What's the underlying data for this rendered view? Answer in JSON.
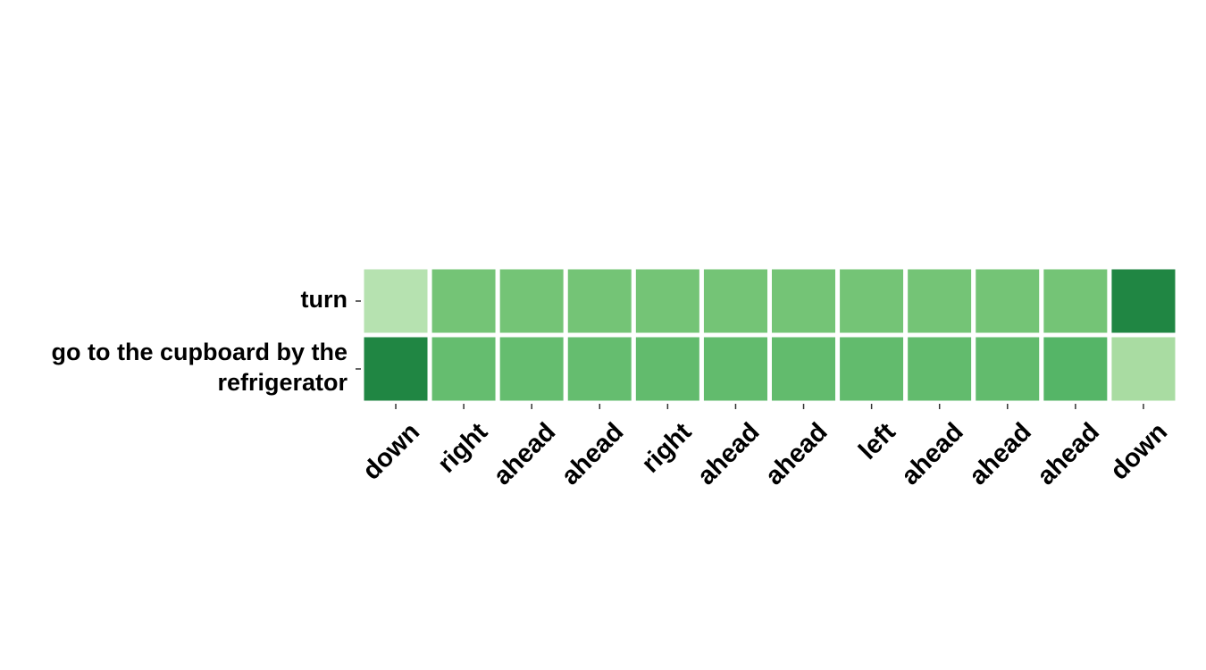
{
  "chart_data": {
    "type": "heatmap",
    "title": "",
    "xlabel": "",
    "ylabel": "",
    "columns": [
      "down",
      "right",
      "ahead",
      "ahead",
      "right",
      "ahead",
      "ahead",
      "left",
      "ahead",
      "ahead",
      "ahead",
      "down"
    ],
    "rows": [
      [
        "turn"
      ],
      [
        "go to the cupboard by the",
        "refrigerator"
      ]
    ],
    "values": [
      [
        0.24,
        0.5,
        0.5,
        0.5,
        0.5,
        0.5,
        0.5,
        0.5,
        0.5,
        0.5,
        0.5,
        0.85
      ],
      [
        0.85,
        0.55,
        0.55,
        0.55,
        0.56,
        0.56,
        0.56,
        0.56,
        0.56,
        0.56,
        0.6,
        0.3
      ]
    ],
    "colormap": [
      "#f7fcf5",
      "#c7e9c0",
      "#a1d99b",
      "#74c476",
      "#41ab5d",
      "#238b45",
      "#005a32"
    ],
    "color_range": [
      0,
      1
    ],
    "colorbar": false,
    "grid": false
  }
}
